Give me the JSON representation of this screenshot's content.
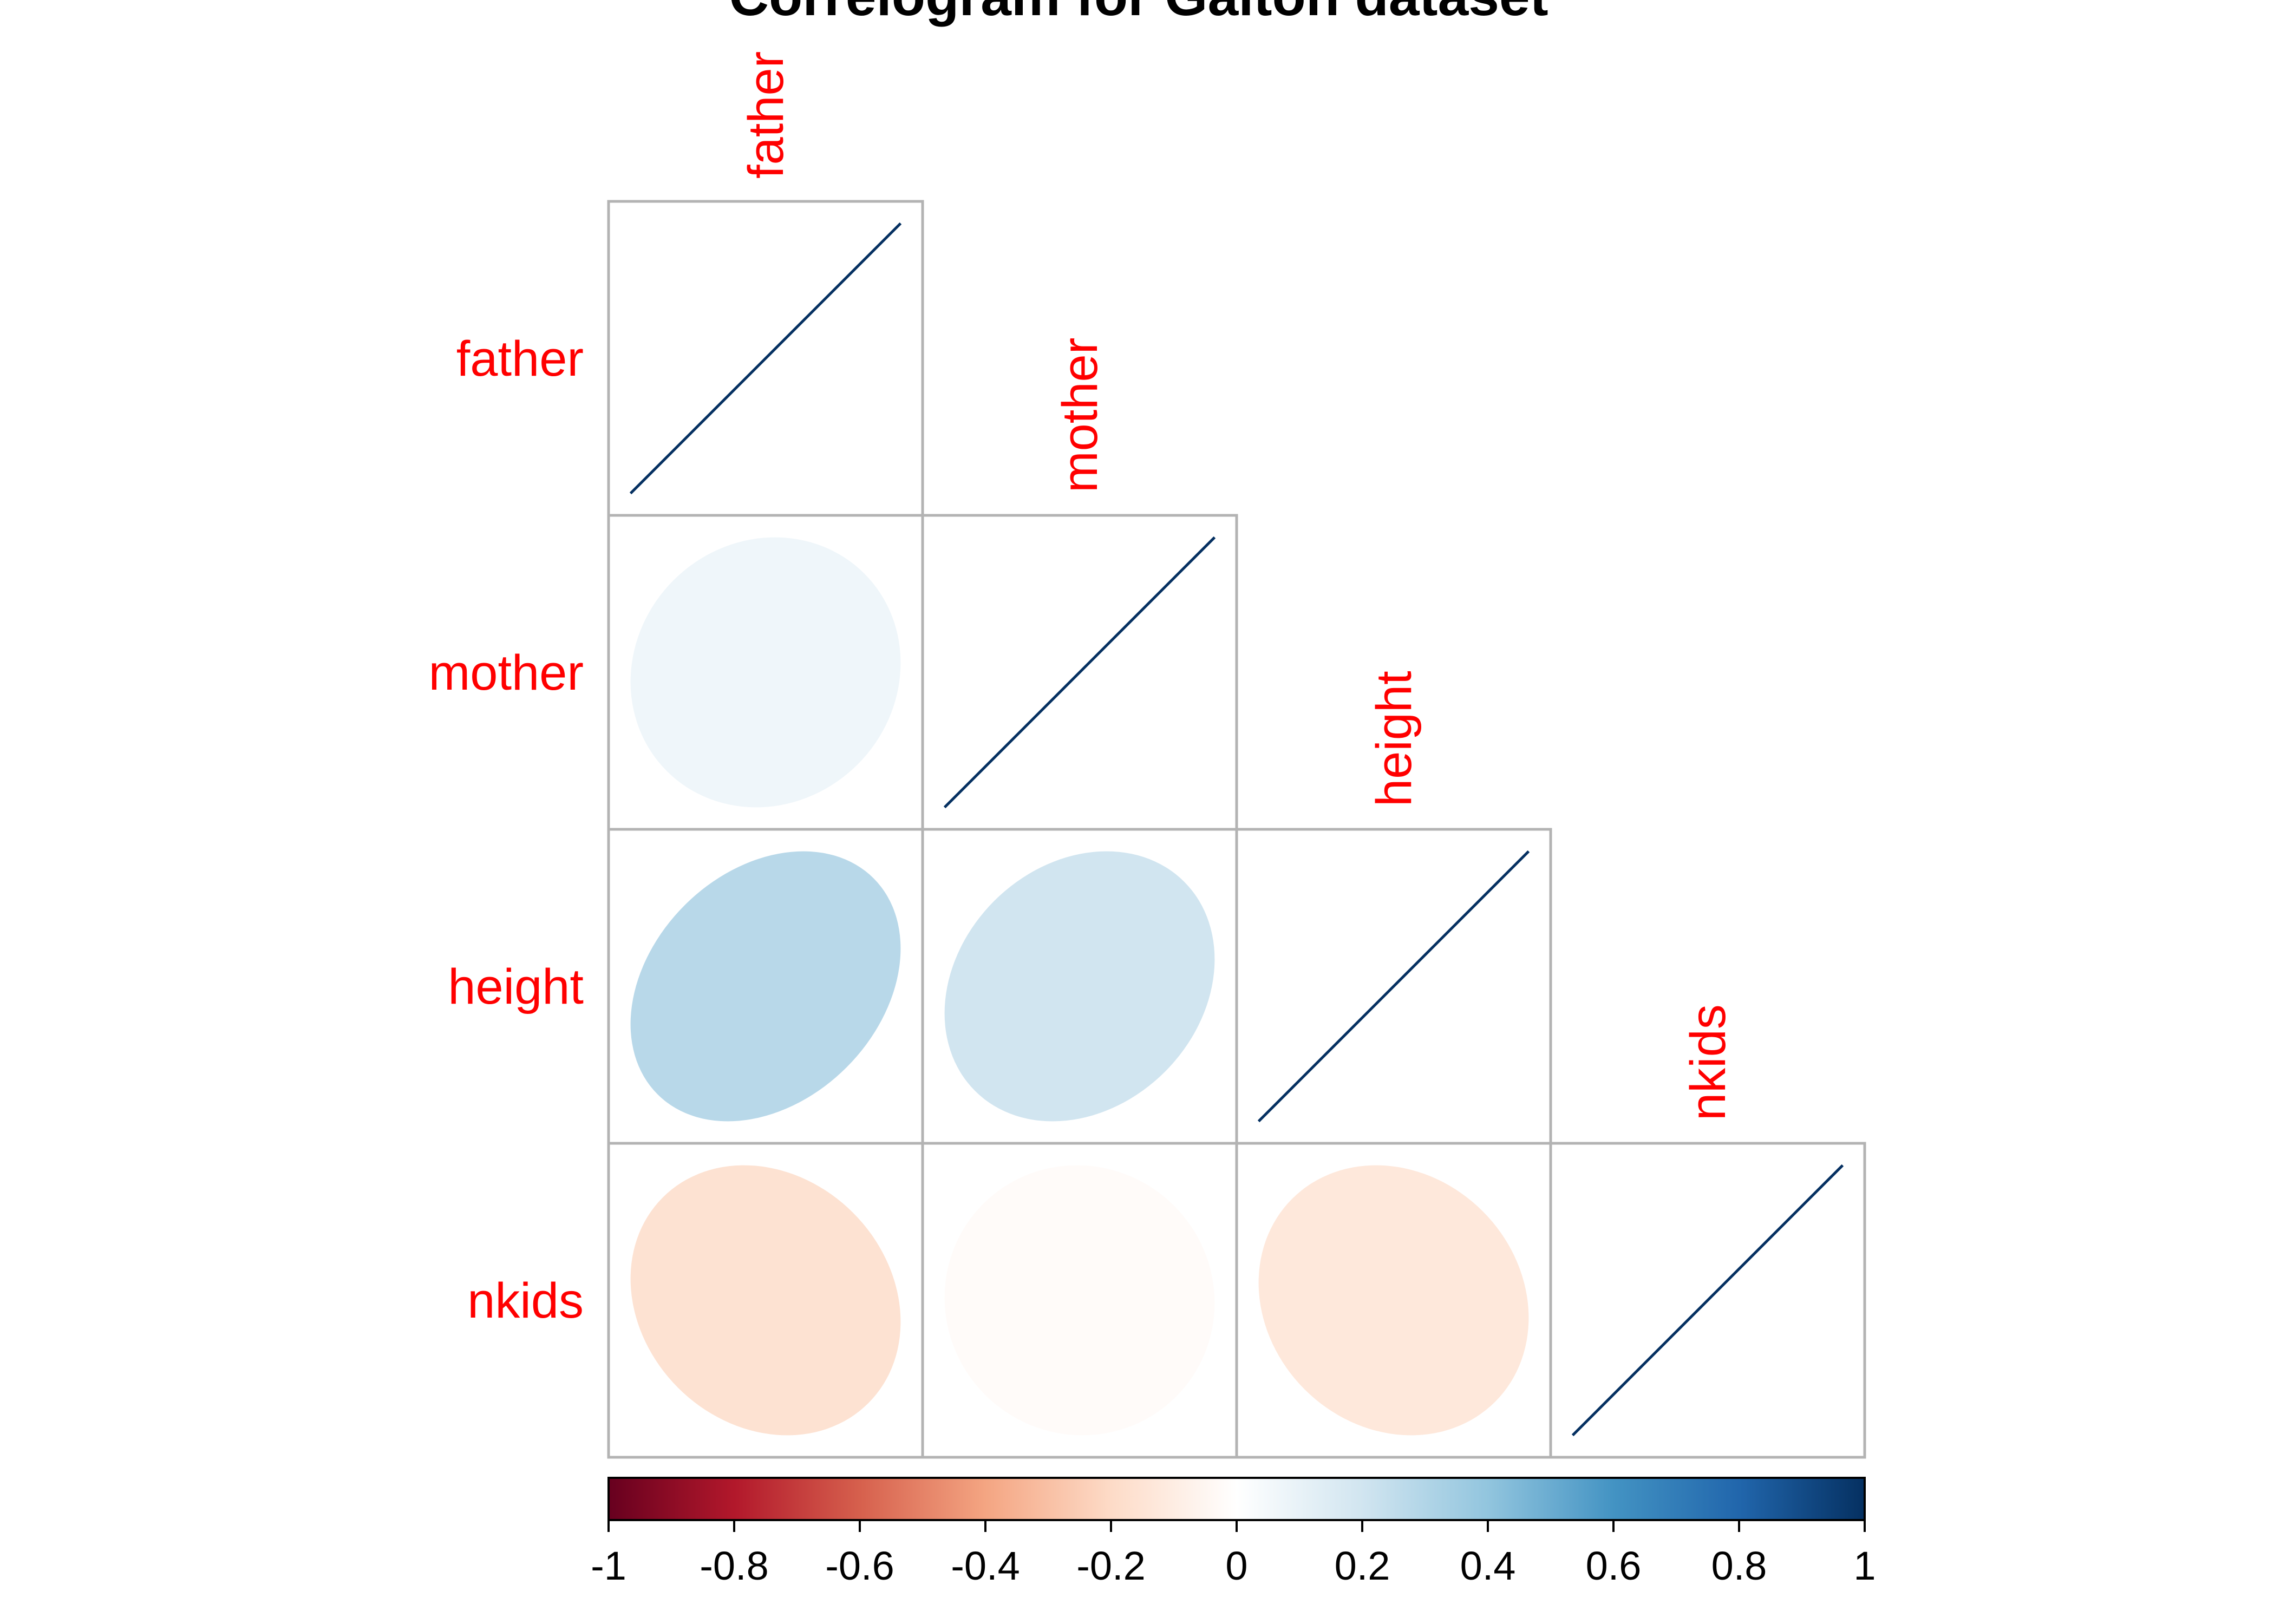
{
  "chart_data": {
    "type": "heatmap",
    "title": "Correlogram for Galton dataset",
    "variables": [
      "father",
      "mother",
      "height",
      "nkids"
    ],
    "layout": "lower-triangle",
    "shape": "ellipse",
    "label_color": "#ff0000",
    "matrix": [
      [
        1.0,
        0.07,
        0.28,
        -0.16
      ],
      [
        0.07,
        1.0,
        0.2,
        -0.02
      ],
      [
        0.28,
        0.2,
        1.0,
        -0.13
      ],
      [
        -0.16,
        -0.02,
        -0.13,
        1.0
      ]
    ],
    "colorbar": {
      "range": [
        -1,
        1
      ],
      "ticks": [
        "-1",
        "-0.8",
        "-0.6",
        "-0.4",
        "-0.2",
        "0",
        "0.2",
        "0.4",
        "0.6",
        "0.8",
        "1"
      ],
      "orientation": "horizontal",
      "palette": [
        "#67001f",
        "#b2182b",
        "#d6604d",
        "#f4a582",
        "#fddbc7",
        "#ffffff",
        "#d1e5f0",
        "#92c5de",
        "#4393c3",
        "#2166ac",
        "#053061"
      ]
    }
  }
}
